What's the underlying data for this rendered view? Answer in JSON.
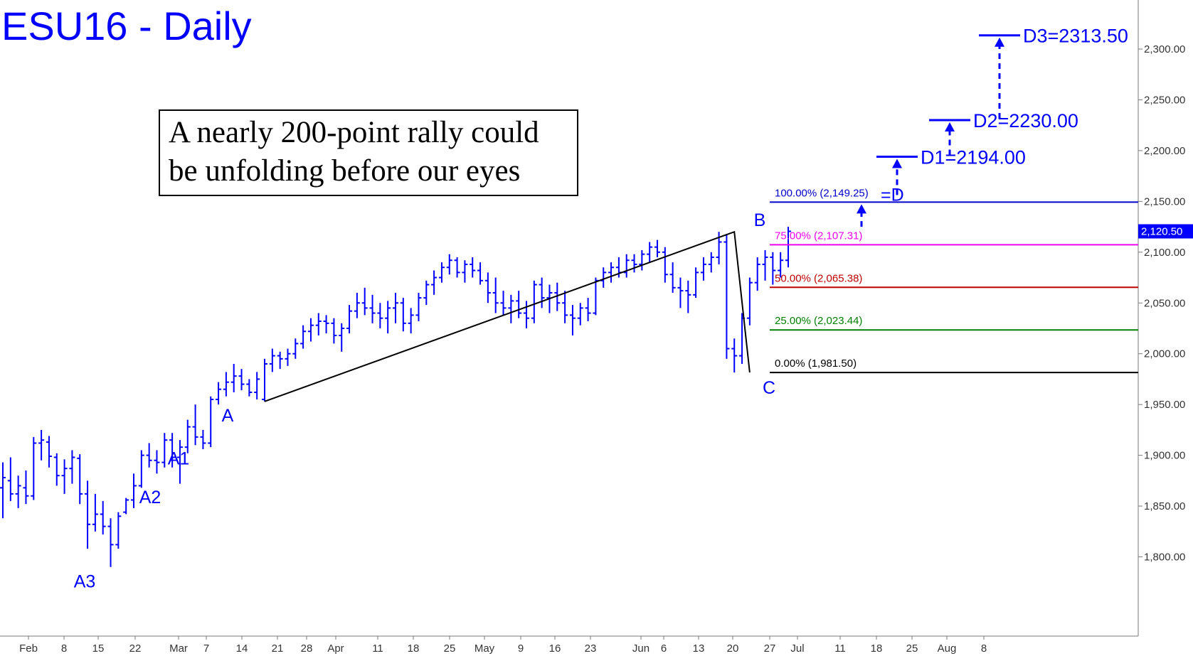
{
  "chart_data": {
    "type": "ohlc",
    "title": "ESU16 - Daily",
    "annotation": [
      "A nearly 200-point rally could",
      "be unfolding before our eyes"
    ],
    "ylim": [
      1780,
      2335
    ],
    "y_ticks": [
      1800,
      1850,
      1900,
      1950,
      2000,
      2050,
      2100,
      2150,
      2200,
      2250,
      2300
    ],
    "y_tick_labels": [
      "1,800.00",
      "1,850.00",
      "1,900.00",
      "1,950.00",
      "2,000.00",
      "2,050.00",
      "2,100.00",
      "2,150.00",
      "2,200.00",
      "2,250.00",
      "2,300.00"
    ],
    "x_ticks": [
      "Feb",
      "8",
      "15",
      "22",
      "Mar",
      "7",
      "14",
      "21",
      "28",
      "Apr",
      "11",
      "18",
      "25",
      "May",
      "9",
      "16",
      "23",
      "Jun",
      "6",
      "13",
      "20",
      "27",
      "Jul",
      "11",
      "18",
      "25",
      "Aug",
      "8"
    ],
    "last_price": 2120.5,
    "last_price_label": "2,120.50",
    "fib_levels": [
      {
        "pct": "0.00%",
        "value": 1981.5,
        "label": "0.00% (1,981.50)",
        "color": "#000000"
      },
      {
        "pct": "25.00%",
        "value": 2023.44,
        "label": "25.00% (2,023.44)",
        "color": "#008000"
      },
      {
        "pct": "50.00%",
        "value": 2065.38,
        "label": "50.00% (2,065.38)",
        "color": "#c00000"
      },
      {
        "pct": "75.00%",
        "value": 2107.31,
        "label": "75.00% (2,107.31)",
        "color": "#ee00ee"
      },
      {
        "pct": "100.00%",
        "value": 2149.25,
        "label": "100.00% (2,149.25)",
        "color": "#0000cc"
      }
    ],
    "d_suffix": "=D",
    "targets": [
      {
        "label": "D1=2194.00",
        "value": 2194.0
      },
      {
        "label": "D2=2230.00",
        "value": 2230.0
      },
      {
        "label": "D3=2313.50",
        "value": 2313.5
      }
    ],
    "pivots": [
      {
        "label": "A3",
        "value": 1791
      },
      {
        "label": "A2",
        "value": 1874
      },
      {
        "label": "A1",
        "value": 1912
      },
      {
        "label": "A",
        "value": 1953
      },
      {
        "label": "B",
        "value": 2120
      },
      {
        "label": "C",
        "value": 1981.5
      }
    ],
    "bars": [
      [
        1868,
        1893,
        1838,
        1878
      ],
      [
        1875,
        1898,
        1855,
        1862
      ],
      [
        1862,
        1880,
        1848,
        1870
      ],
      [
        1868,
        1885,
        1852,
        1860
      ],
      [
        1860,
        1918,
        1856,
        1912
      ],
      [
        1912,
        1925,
        1895,
        1915
      ],
      [
        1913,
        1919,
        1888,
        1899
      ],
      [
        1898,
        1902,
        1870,
        1880
      ],
      [
        1880,
        1896,
        1862,
        1887
      ],
      [
        1887,
        1905,
        1872,
        1898
      ],
      [
        1897,
        1901,
        1852,
        1862
      ],
      [
        1862,
        1875,
        1808,
        1832
      ],
      [
        1832,
        1862,
        1825,
        1842
      ],
      [
        1842,
        1855,
        1822,
        1830
      ],
      [
        1830,
        1838,
        1790,
        1812
      ],
      [
        1812,
        1844,
        1808,
        1840
      ],
      [
        1844,
        1858,
        1842,
        1856
      ],
      [
        1856,
        1882,
        1848,
        1870
      ],
      [
        1870,
        1905,
        1868,
        1900
      ],
      [
        1900,
        1912,
        1888,
        1895
      ],
      [
        1895,
        1905,
        1882,
        1893
      ],
      [
        1893,
        1922,
        1888,
        1915
      ],
      [
        1915,
        1922,
        1888,
        1898
      ],
      [
        1898,
        1915,
        1872,
        1908
      ],
      [
        1908,
        1935,
        1902,
        1928
      ],
      [
        1928,
        1950,
        1910,
        1918
      ],
      [
        1918,
        1925,
        1906,
        1912
      ],
      [
        1912,
        1958,
        1908,
        1955
      ],
      [
        1955,
        1972,
        1950,
        1965
      ],
      [
        1965,
        1982,
        1958,
        1972
      ],
      [
        1972,
        1990,
        1962,
        1978
      ],
      [
        1978,
        1985,
        1964,
        1970
      ],
      [
        1970,
        1975,
        1958,
        1962
      ],
      [
        1962,
        1982,
        1955,
        1975
      ],
      [
        1955,
        1995,
        1953,
        1990
      ],
      [
        1990,
        2005,
        1982,
        1998
      ],
      [
        1998,
        2002,
        1985,
        1995
      ],
      [
        1995,
        2005,
        1988,
        2000
      ],
      [
        2000,
        2015,
        1995,
        2010
      ],
      [
        2010,
        2028,
        2005,
        2022
      ],
      [
        2022,
        2035,
        2012,
        2028
      ],
      [
        2028,
        2040,
        2018,
        2032
      ],
      [
        2032,
        2038,
        2020,
        2030
      ],
      [
        2030,
        2035,
        2010,
        2018
      ],
      [
        2018,
        2030,
        2002,
        2025
      ],
      [
        2025,
        2048,
        2020,
        2042
      ],
      [
        2042,
        2060,
        2035,
        2050
      ],
      [
        2050,
        2065,
        2038,
        2045
      ],
      [
        2045,
        2058,
        2030,
        2040
      ],
      [
        2040,
        2050,
        2025,
        2035
      ],
      [
        2035,
        2052,
        2020,
        2045
      ],
      [
        2045,
        2060,
        2030,
        2050
      ],
      [
        2050,
        2055,
        2022,
        2030
      ],
      [
        2030,
        2045,
        2020,
        2038
      ],
      [
        2038,
        2060,
        2032,
        2055
      ],
      [
        2055,
        2072,
        2048,
        2068
      ],
      [
        2068,
        2082,
        2058,
        2075
      ],
      [
        2075,
        2090,
        2070,
        2085
      ],
      [
        2085,
        2098,
        2078,
        2092
      ],
      [
        2092,
        2095,
        2075,
        2080
      ],
      [
        2080,
        2092,
        2070,
        2088
      ],
      [
        2088,
        2095,
        2075,
        2082
      ],
      [
        2082,
        2090,
        2068,
        2072
      ],
      [
        2072,
        2080,
        2050,
        2060
      ],
      [
        2060,
        2075,
        2040,
        2050
      ],
      [
        2050,
        2062,
        2038,
        2045
      ],
      [
        2045,
        2058,
        2030,
        2052
      ],
      [
        2052,
        2062,
        2035,
        2040
      ],
      [
        2040,
        2052,
        2025,
        2035
      ],
      [
        2035,
        2072,
        2030,
        2068
      ],
      [
        2068,
        2075,
        2045,
        2055
      ],
      [
        2055,
        2068,
        2040,
        2060
      ],
      [
        2060,
        2070,
        2042,
        2050
      ],
      [
        2050,
        2062,
        2030,
        2038
      ],
      [
        2038,
        2048,
        2018,
        2035
      ],
      [
        2035,
        2050,
        2028,
        2045
      ],
      [
        2045,
        2055,
        2032,
        2040
      ],
      [
        2040,
        2075,
        2038,
        2072
      ],
      [
        2072,
        2085,
        2065,
        2080
      ],
      [
        2080,
        2090,
        2070,
        2085
      ],
      [
        2085,
        2095,
        2075,
        2080
      ],
      [
        2080,
        2098,
        2075,
        2092
      ],
      [
        2092,
        2098,
        2080,
        2088
      ],
      [
        2088,
        2102,
        2082,
        2098
      ],
      [
        2098,
        2110,
        2090,
        2105
      ],
      [
        2105,
        2112,
        2095,
        2100
      ],
      [
        2100,
        2105,
        2070,
        2078
      ],
      [
        2078,
        2090,
        2060,
        2065
      ],
      [
        2065,
        2075,
        2045,
        2062
      ],
      [
        2062,
        2072,
        2040,
        2058
      ],
      [
        2058,
        2085,
        2055,
        2080
      ],
      [
        2080,
        2095,
        2072,
        2088
      ],
      [
        2088,
        2100,
        2080,
        2095
      ],
      [
        2095,
        2120,
        2088,
        2110
      ],
      [
        2110,
        2118,
        1995,
        2005
      ],
      [
        2005,
        2015,
        1981.5,
        1998
      ],
      [
        1998,
        2040,
        1990,
        2035
      ],
      [
        2035,
        2075,
        2028,
        2070
      ],
      [
        2070,
        2095,
        2062,
        2088
      ],
      [
        2088,
        2102,
        2072,
        2095
      ],
      [
        2095,
        2100,
        2068,
        2082
      ],
      [
        2082,
        2100,
        2075,
        2092
      ],
      [
        2092,
        2125,
        2085,
        2120.5
      ]
    ]
  }
}
